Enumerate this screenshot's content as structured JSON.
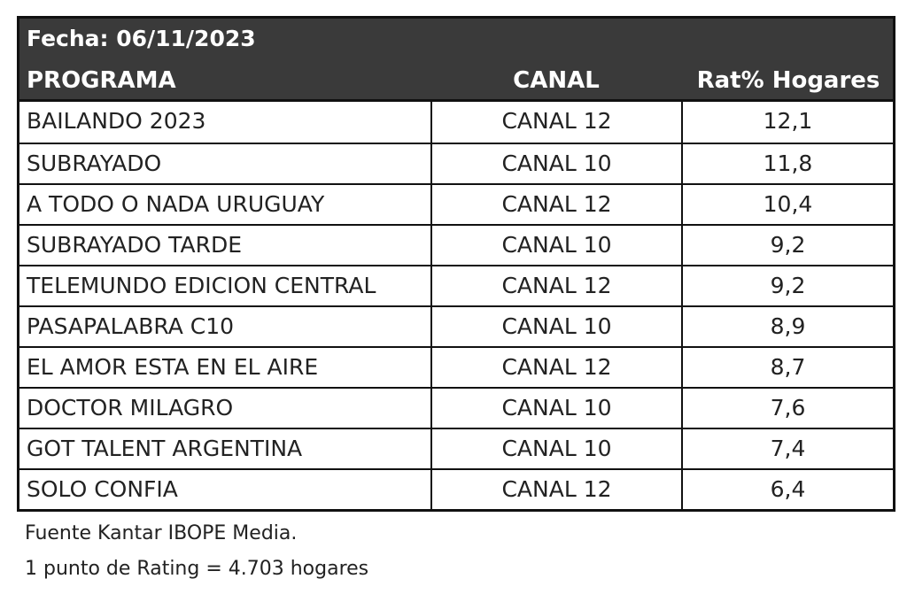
{
  "header": {
    "date": "Fecha: 06/11/2023",
    "columns": [
      "PROGRAMA",
      "CANAL",
      "Rat% Hogares"
    ]
  },
  "rows": [
    {
      "programa": "BAILANDO 2023",
      "canal": "CANAL 12",
      "rating": "12,1"
    },
    {
      "programa": "SUBRAYADO",
      "canal": "CANAL 10",
      "rating": "11,8"
    },
    {
      "programa": "A TODO O NADA URUGUAY",
      "canal": "CANAL 12",
      "rating": "10,4"
    },
    {
      "programa": "SUBRAYADO TARDE",
      "canal": "CANAL 10",
      "rating": "9,2"
    },
    {
      "programa": "TELEMUNDO EDICION CENTRAL",
      "canal": "CANAL 12",
      "rating": "9,2"
    },
    {
      "programa": "PASAPALABRA C10",
      "canal": "CANAL 10",
      "rating": "8,9"
    },
    {
      "programa": "EL AMOR ESTA EN EL AIRE",
      "canal": "CANAL 12",
      "rating": "8,7"
    },
    {
      "programa": "DOCTOR MILAGRO",
      "canal": "CANAL 10",
      "rating": "7,6"
    },
    {
      "programa": "GOT TALENT ARGENTINA",
      "canal": "CANAL 10",
      "rating": "7,4"
    },
    {
      "programa": "SOLO CONFIA",
      "canal": "CANAL 12",
      "rating": "6,4"
    }
  ],
  "footer": {
    "source": "Fuente Kantar IBOPE Media.",
    "note": "1 punto de Rating = 4.703 hogares"
  },
  "colors": {
    "header_bg": "#3a3a3a",
    "header_text": "#ffffff",
    "border": "#111111"
  }
}
